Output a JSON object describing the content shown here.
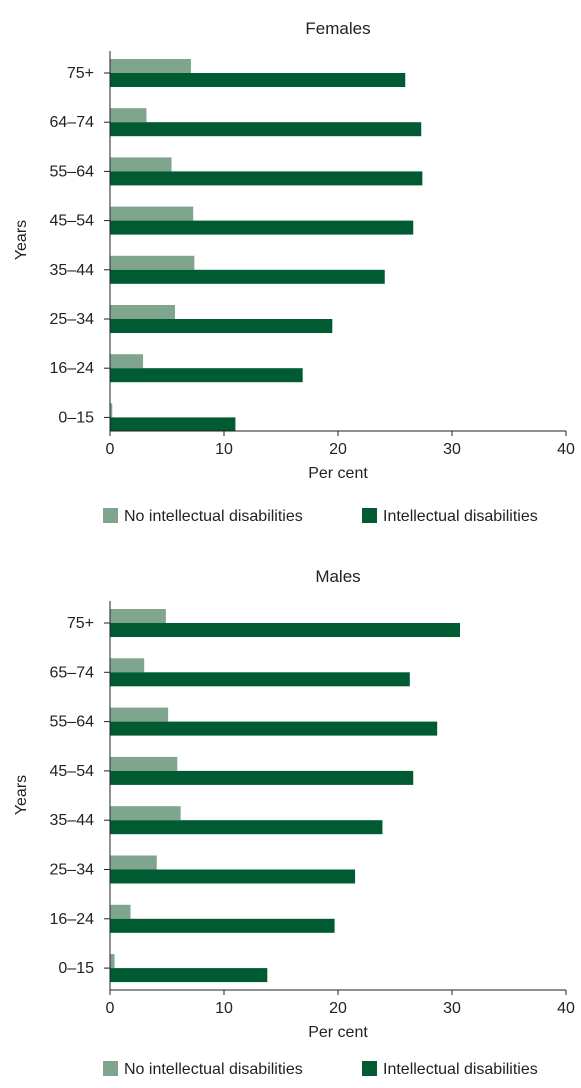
{
  "colors": {
    "no_id": "#7fa58e",
    "id": "#005a32",
    "axis": "#222222"
  },
  "chart_data": [
    {
      "type": "bar",
      "orientation": "horizontal",
      "title": "Females",
      "xlabel": "Per cent",
      "ylabel": "Years",
      "xlim": [
        0,
        40
      ],
      "xticks": [
        0,
        10,
        20,
        30,
        40
      ],
      "grid": false,
      "legend_position": "bottom",
      "categories": [
        "75+",
        "64–74",
        "55–64",
        "45–54",
        "35–44",
        "25–34",
        "16–24",
        "0–15"
      ],
      "series": [
        {
          "name": "No intellectual disabilities",
          "values": [
            7.1,
            3.2,
            5.4,
            7.3,
            7.4,
            5.7,
            2.9,
            0.2
          ]
        },
        {
          "name": "Intellectual disabilities",
          "values": [
            25.9,
            27.3,
            27.4,
            26.6,
            24.1,
            19.5,
            16.9,
            11.0
          ]
        }
      ]
    },
    {
      "type": "bar",
      "orientation": "horizontal",
      "title": "Males",
      "xlabel": "Per cent",
      "ylabel": "Years",
      "xlim": [
        0,
        40
      ],
      "xticks": [
        0,
        10,
        20,
        30,
        40
      ],
      "grid": false,
      "legend_position": "bottom",
      "categories": [
        "75+",
        "65–74",
        "55–64",
        "45–54",
        "35–44",
        "25–34",
        "16–24",
        "0–15"
      ],
      "series": [
        {
          "name": "No intellectual disabilities",
          "values": [
            4.9,
            3.0,
            5.1,
            5.9,
            6.2,
            4.1,
            1.8,
            0.4
          ]
        },
        {
          "name": "Intellectual disabilities",
          "values": [
            30.7,
            26.3,
            28.7,
            26.6,
            23.9,
            21.5,
            19.7,
            13.8
          ]
        }
      ]
    }
  ]
}
